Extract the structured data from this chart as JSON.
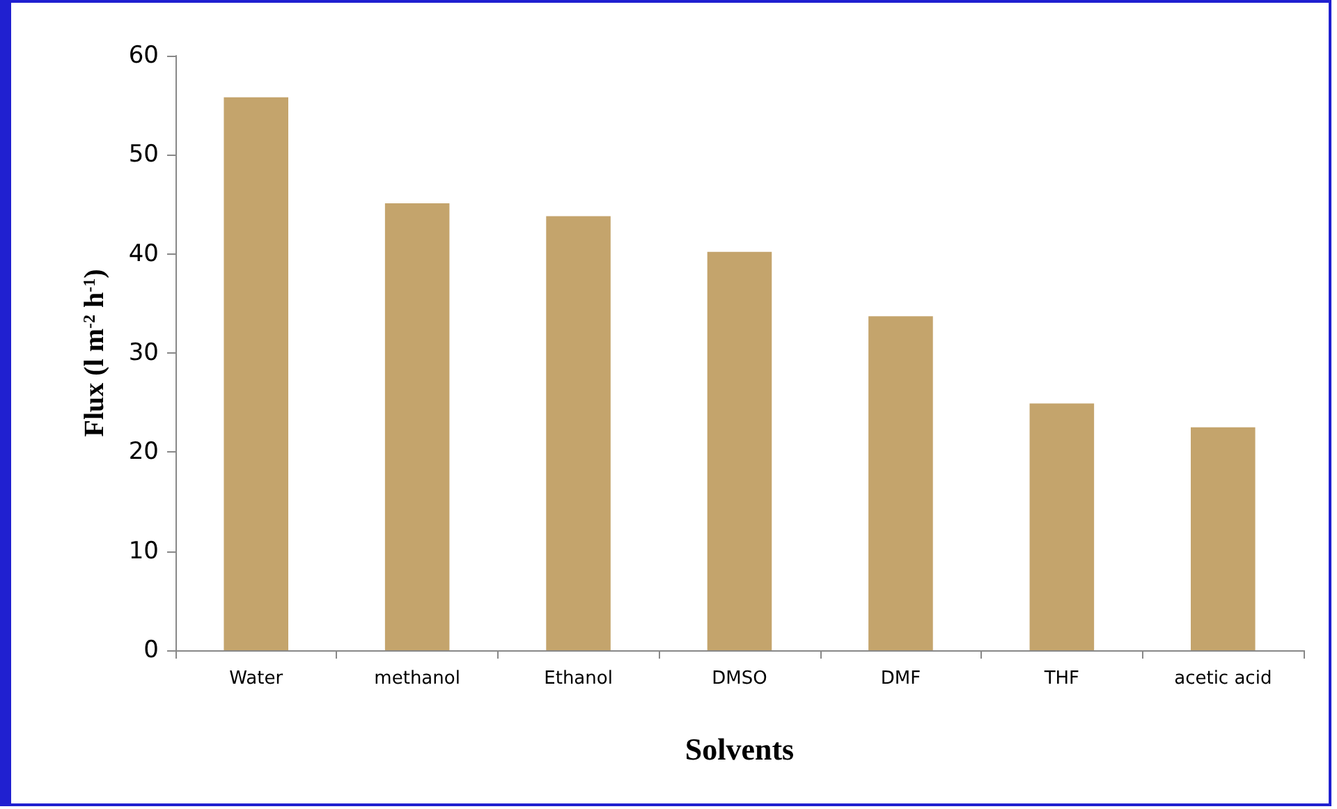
{
  "chart_data": {
    "type": "bar",
    "xlabel": "Solvents",
    "ylabel": "Flux (l m$^{-2}$ h$^{-1}$)",
    "categories": [
      "Water",
      "methanol",
      "Ethanol",
      "DMSO",
      "DMF",
      "THF",
      "acetic acid"
    ],
    "values": [
      55.8,
      45.1,
      43.8,
      40.2,
      33.7,
      24.9,
      22.5
    ],
    "color": "#c4a46c",
    "ylim": [
      0,
      60
    ],
    "yticks": [
      0,
      10,
      20,
      30,
      40,
      50,
      60
    ]
  }
}
